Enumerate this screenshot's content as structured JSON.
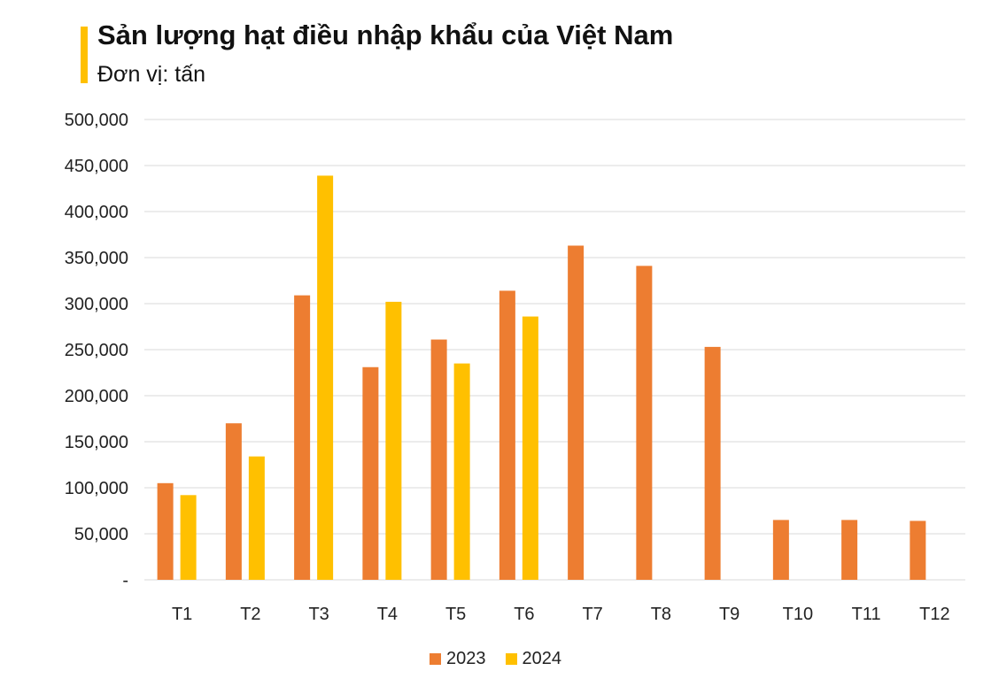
{
  "chart_data": {
    "type": "bar",
    "title": "Sản lượng hạt điều nhập khẩu của Việt Nam",
    "subtitle": "Đơn vị: tấn",
    "categories": [
      "T1",
      "T2",
      "T3",
      "T4",
      "T5",
      "T6",
      "T7",
      "T8",
      "T9",
      "T10",
      "T11",
      "T12"
    ],
    "series": [
      {
        "name": "2023",
        "color": "#ED7D31",
        "values": [
          105000,
          170000,
          309000,
          231000,
          261000,
          314000,
          363000,
          341000,
          253000,
          65000,
          65000,
          64000
        ]
      },
      {
        "name": "2024",
        "color": "#FFC000",
        "values": [
          92000,
          134000,
          439000,
          302000,
          235000,
          286000,
          null,
          null,
          null,
          null,
          null,
          null
        ]
      }
    ],
    "ylim": [
      0,
      500000
    ],
    "yticks": [
      0,
      50000,
      100000,
      150000,
      200000,
      250000,
      300000,
      350000,
      400000,
      450000,
      500000
    ],
    "ytick_labels": [
      "-",
      "50,000",
      "100,000",
      "150,000",
      "200,000",
      "250,000",
      "300,000",
      "350,000",
      "400,000",
      "450,000",
      "500,000"
    ],
    "grid": true,
    "legend": "bottom",
    "accent_color": "#FFC000"
  }
}
